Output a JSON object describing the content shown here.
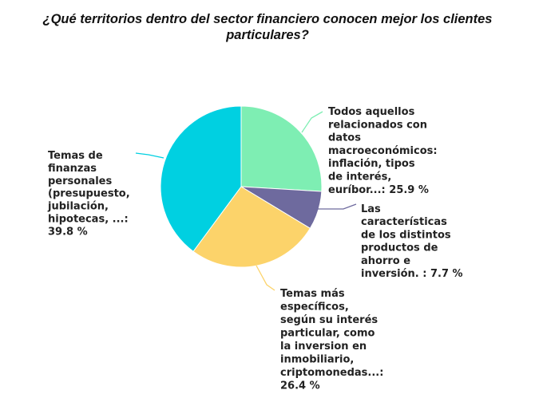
{
  "chart_data": {
    "type": "pie",
    "title": [
      "¿Qué territorios dentro del sector financiero conocen mejor los clientes",
      "particulares?"
    ],
    "slices": [
      {
        "label_lines": [
          "Todos aquellos",
          "relacionados con",
          "datos",
          "macroeconómicos:",
          "inflación, tipos",
          "de interés,",
          "euríbor...: 25.9 %"
        ],
        "value": 25.9,
        "color": "#7eeeb3"
      },
      {
        "label_lines": [
          "Las",
          "características",
          "de los distintos",
          "productos de",
          "ahorro e",
          "inversión. : 7.7 %"
        ],
        "value": 7.7,
        "color": "#6e6a9e"
      },
      {
        "label_lines": [
          "Temas más",
          "específicos,",
          "según su interés",
          "particular, como",
          "la inversion en",
          "inmobiliario,",
          "criptomonedas...:",
          "26.4 %"
        ],
        "value": 26.4,
        "color": "#fcd36a"
      },
      {
        "label_lines": [
          "Temas de",
          "finanzas",
          "personales",
          "(presupuesto,",
          "jubilación,",
          "hipotecas, ...:",
          "39.8 %"
        ],
        "value": 39.8,
        "color": "#00d0e1"
      }
    ],
    "legend": "none"
  }
}
